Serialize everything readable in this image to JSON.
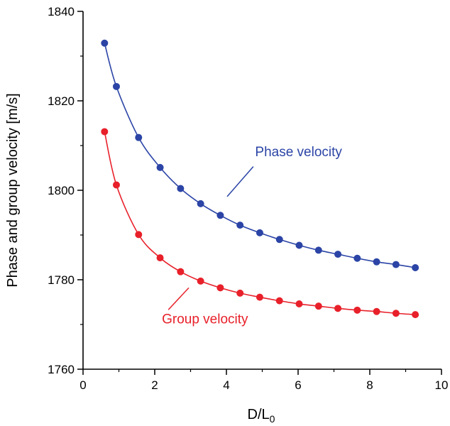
{
  "chart_data": {
    "type": "scatter",
    "xlabel": "D/L",
    "xlabel_subscript": "0",
    "ylabel": "Phase and group velocity [m/s]",
    "xlim": [
      0,
      10
    ],
    "ylim": [
      1760,
      1840
    ],
    "x_ticks": [
      0,
      2,
      4,
      6,
      8,
      10
    ],
    "x_tick_labels": [
      "0",
      "2",
      "4",
      "6",
      "8",
      "10"
    ],
    "y_ticks": [
      1760,
      1780,
      1800,
      1820,
      1840
    ],
    "y_tick_labels": [
      "1760",
      "1780",
      "1800",
      "1820",
      "1840"
    ],
    "grid": false,
    "legend": "none",
    "series": [
      {
        "name": "Phase velocity",
        "color": "#2b44a6",
        "x": [
          0.6,
          0.93,
          1.55,
          2.15,
          2.72,
          3.28,
          3.83,
          4.38,
          4.93,
          5.48,
          6.03,
          6.57,
          7.11,
          7.65,
          8.19,
          8.73,
          9.27
        ],
        "y": [
          1832.9,
          1823.2,
          1811.8,
          1805.1,
          1800.4,
          1797.0,
          1794.4,
          1792.2,
          1790.5,
          1789.0,
          1787.7,
          1786.6,
          1785.7,
          1784.8,
          1784.0,
          1783.4,
          1782.7
        ]
      },
      {
        "name": "Group velocity",
        "color": "#e8202a",
        "x": [
          0.6,
          0.93,
          1.55,
          2.15,
          2.72,
          3.28,
          3.83,
          4.38,
          4.93,
          5.48,
          6.03,
          6.57,
          7.11,
          7.65,
          8.19,
          8.73,
          9.27
        ],
        "y": [
          1813.1,
          1801.2,
          1790.1,
          1784.9,
          1781.8,
          1779.7,
          1778.2,
          1777.0,
          1776.1,
          1775.3,
          1774.6,
          1774.1,
          1773.6,
          1773.2,
          1772.9,
          1772.5,
          1772.2
        ]
      }
    ],
    "annotations": [
      {
        "text": "Phase velocity",
        "series": 0,
        "label_at": [
          4.8,
          1807.6
        ],
        "line_from": [
          4.75,
          1805.3
        ],
        "line_to": [
          4.02,
          1798.6
        ]
      },
      {
        "text": "Group velocity",
        "series": 1,
        "label_at": [
          2.2,
          1770.2
        ],
        "line_from": [
          2.38,
          1773.3
        ],
        "line_to": [
          2.95,
          1778.2
        ]
      }
    ]
  }
}
